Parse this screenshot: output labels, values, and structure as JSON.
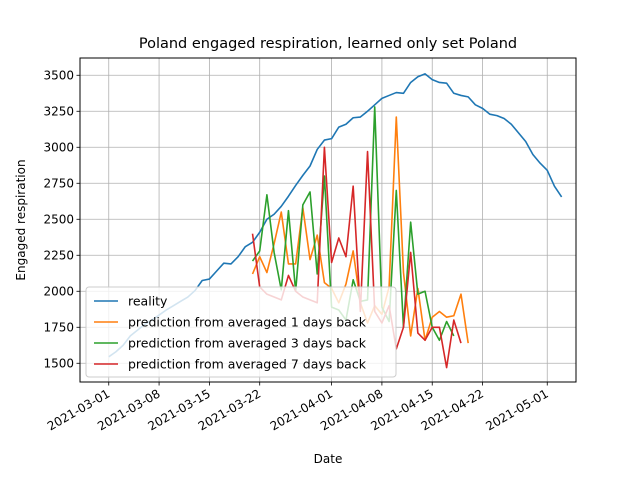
{
  "chart_data": {
    "type": "line",
    "title": "Poland engaged respiration, learned only set Poland",
    "xlabel": "Date",
    "ylabel": "Engaged respiration",
    "xlim": [
      "2021-02-25",
      "2021-05-05"
    ],
    "ylim": [
      1370,
      3620
    ],
    "grid": true,
    "legend_position": "lower-left",
    "x_ticks": [
      "2021-03-01",
      "2021-03-08",
      "2021-03-15",
      "2021-03-22",
      "2021-04-01",
      "2021-04-08",
      "2021-04-15",
      "2021-04-22",
      "2021-05-01"
    ],
    "y_ticks": [
      1500,
      1750,
      2000,
      2250,
      2500,
      2750,
      3000,
      3250,
      3500
    ],
    "y_tick_labels": [
      "1500",
      "1750",
      "2000",
      "2250",
      "2500",
      "2750",
      "3000",
      "3250",
      "3500"
    ],
    "series": [
      {
        "name": "reality",
        "color": "#1f77b4",
        "start": "2021-03-01",
        "values": [
          1545,
          1580,
          1625,
          1690,
          1730,
          1770,
          1800,
          1835,
          1870,
          1900,
          1930,
          1960,
          2005,
          2075,
          2085,
          2140,
          2195,
          2190,
          2240,
          2310,
          2340,
          2410,
          2500,
          2535,
          2590,
          2660,
          2735,
          2805,
          2870,
          2985,
          3050,
          3060,
          3140,
          3160,
          3205,
          3210,
          3250,
          3295,
          3340,
          3360,
          3380,
          3375,
          3450,
          3490,
          3510,
          3470,
          3450,
          3445,
          3375,
          3360,
          3350,
          3295,
          3270,
          3230,
          3220,
          3200,
          3160,
          3100,
          3040,
          2950,
          2890,
          2840,
          2730,
          2655
        ]
      },
      {
        "name": "prediction from averaged 1 days back",
        "color": "#ff7f0e",
        "start": "2021-03-21",
        "values": [
          2120,
          2240,
          2130,
          2330,
          2550,
          2190,
          2190,
          2580,
          2220,
          2390,
          2060,
          2020,
          1920,
          2050,
          2280,
          1920,
          1780,
          1900,
          1840,
          2030,
          3210,
          2130,
          1690,
          2020,
          1660,
          1820,
          1860,
          1820,
          1830,
          1980,
          1640
        ]
      },
      {
        "name": "prediction from averaged 3 days back",
        "color": "#2ca02c",
        "start": "2021-03-21",
        "values": [
          2210,
          2280,
          2670,
          2270,
          2010,
          2560,
          2000,
          2600,
          2690,
          2120,
          2800,
          1890,
          1870,
          1800,
          2080,
          1930,
          1940,
          3280,
          1890,
          1790,
          2700,
          1750,
          2480,
          1980,
          2000,
          1750,
          1660,
          1790,
          1690
        ]
      },
      {
        "name": "prediction from averaged 7 days back",
        "color": "#d62728",
        "start": "2021-03-21",
        "values": [
          2400,
          2030,
          1980,
          1960,
          1940,
          2110,
          2000,
          1960,
          1940,
          1920,
          3000,
          2200,
          2370,
          2240,
          2730,
          1860,
          2970,
          1860,
          1780,
          1900,
          1600,
          1750,
          2270,
          1710,
          1660,
          1750,
          1750,
          1470,
          1800,
          1640
        ]
      }
    ]
  }
}
